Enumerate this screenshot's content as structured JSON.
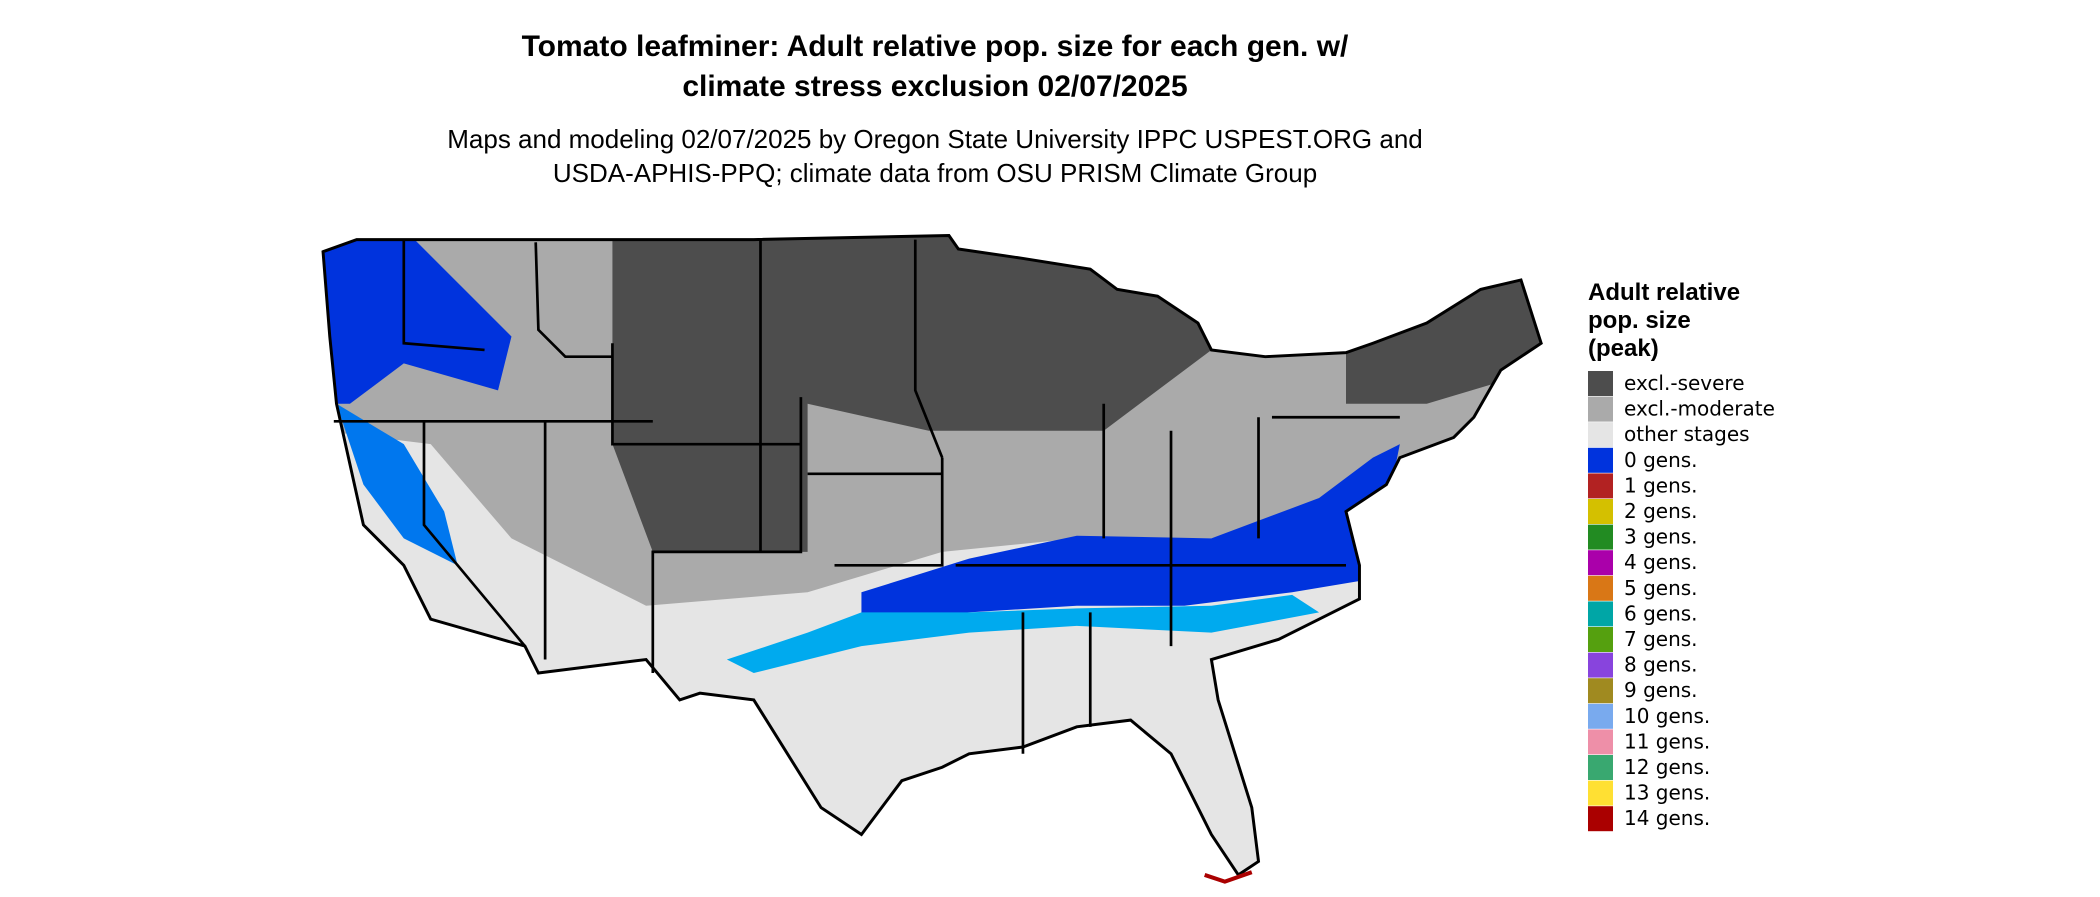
{
  "header": {
    "title_lines": [
      "Tomato leafminer: Adult relative pop. size for each gen. w/",
      "climate stress exclusion 02/07/2025"
    ],
    "subtitle_lines": [
      "Maps and modeling 02/07/2025 by Oregon State University IPPC USPEST.ORG and",
      "USDA-APHIS-PPQ; climate data from OSU PRISM Climate Group"
    ]
  },
  "legend": {
    "title_lines": [
      "Adult relative",
      "pop. size",
      "(peak)"
    ],
    "items": [
      {
        "label": "excl.-severe",
        "color": "#4d4d4d"
      },
      {
        "label": "excl.-moderate",
        "color": "#aaaaaa"
      },
      {
        "label": "other stages",
        "color": "#e5e5e5"
      },
      {
        "label": "0 gens.",
        "color": "#0033dd"
      },
      {
        "label": "1 gens.",
        "color": "#b22222"
      },
      {
        "label": "2 gens.",
        "color": "#d4c000"
      },
      {
        "label": "3 gens.",
        "color": "#228b22"
      },
      {
        "label": "4 gens.",
        "color": "#aa00aa"
      },
      {
        "label": "5 gens.",
        "color": "#d97716"
      },
      {
        "label": "6 gens.",
        "color": "#00a6a6"
      },
      {
        "label": "7 gens.",
        "color": "#55a00f"
      },
      {
        "label": "8 gens.",
        "color": "#8844dd"
      },
      {
        "label": "9 gens.",
        "color": "#a08a20"
      },
      {
        "label": "10 gens.",
        "color": "#79aaee"
      },
      {
        "label": "11 gens.",
        "color": "#ee8fa8"
      },
      {
        "label": "12 gens.",
        "color": "#39a870"
      },
      {
        "label": "13 gens.",
        "color": "#ffe033"
      },
      {
        "label": "14 gens.",
        "color": "#aa0000"
      }
    ]
  }
}
